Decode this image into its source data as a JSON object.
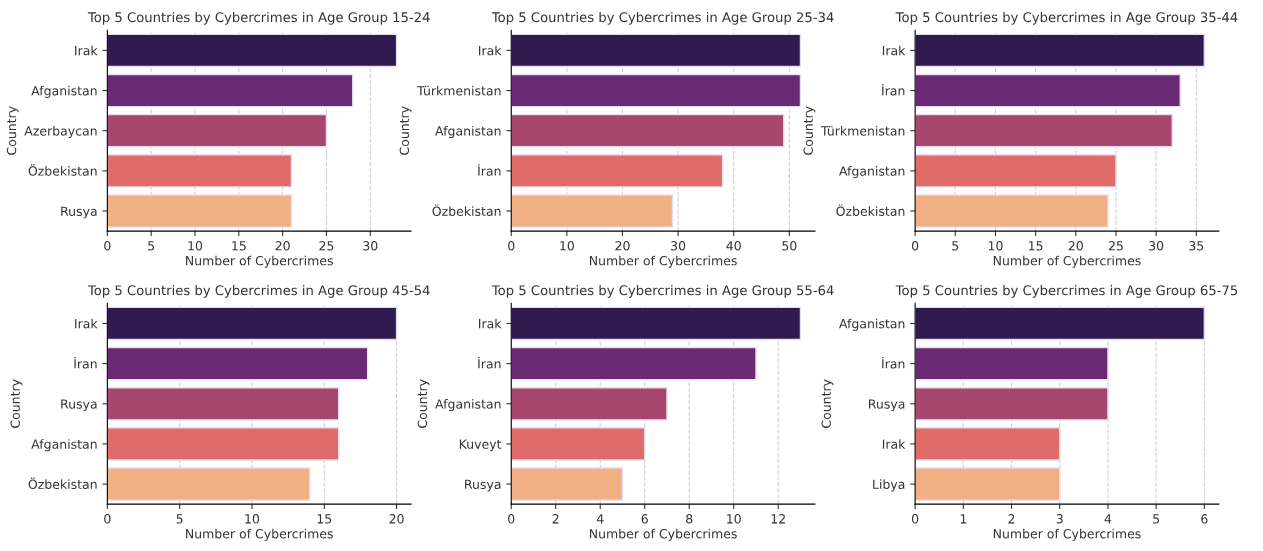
{
  "chart_data": [
    {
      "type": "bar",
      "orientation": "horizontal",
      "title": "Top 5 Countries by Cybercrimes in Age Group 15-24",
      "xlabel": "Number of Cybercrimes",
      "ylabel": "Country",
      "categories": [
        "Irak",
        "Afganistan",
        "Azerbaycan",
        "Özbekistan",
        "Rusya"
      ],
      "values": [
        33,
        28,
        25,
        21,
        21
      ],
      "colors": [
        "#2e1a4f",
        "#6a2a73",
        "#a7476f",
        "#e06c6a",
        "#f0b083"
      ],
      "xlim": [
        0,
        34.65
      ],
      "xticks": [
        0,
        5,
        10,
        15,
        20,
        25,
        30
      ],
      "grid": "x"
    },
    {
      "type": "bar",
      "orientation": "horizontal",
      "title": "Top 5 Countries by Cybercrimes in Age Group 25-34",
      "xlabel": "Number of Cybercrimes",
      "ylabel": "Country",
      "categories": [
        "Irak",
        "Türkmenistan",
        "Afganistan",
        "İran",
        "Özbekistan"
      ],
      "values": [
        52,
        52,
        49,
        38,
        29
      ],
      "colors": [
        "#2e1a4f",
        "#6a2a73",
        "#a7476f",
        "#e06c6a",
        "#f0b083"
      ],
      "xlim": [
        0,
        54.6
      ],
      "xticks": [
        0,
        10,
        20,
        30,
        40,
        50
      ],
      "grid": "x"
    },
    {
      "type": "bar",
      "orientation": "horizontal",
      "title": "Top 5 Countries by Cybercrimes in Age Group 35-44",
      "xlabel": "Number of Cybercrimes",
      "ylabel": "Country",
      "categories": [
        "Irak",
        "İran",
        "Türkmenistan",
        "Afganistan",
        "Özbekistan"
      ],
      "values": [
        36,
        33,
        32,
        25,
        24
      ],
      "colors": [
        "#2e1a4f",
        "#6a2a73",
        "#a7476f",
        "#e06c6a",
        "#f0b083"
      ],
      "xlim": [
        0,
        37.8
      ],
      "xticks": [
        0,
        5,
        10,
        15,
        20,
        25,
        30,
        35
      ],
      "grid": "x"
    },
    {
      "type": "bar",
      "orientation": "horizontal",
      "title": "Top 5 Countries by Cybercrimes in Age Group 45-54",
      "xlabel": "Number of Cybercrimes",
      "ylabel": "Country",
      "categories": [
        "Irak",
        "İran",
        "Rusya",
        "Afganistan",
        "Özbekistan"
      ],
      "values": [
        20,
        18,
        16,
        16,
        14
      ],
      "colors": [
        "#2e1a4f",
        "#6a2a73",
        "#a7476f",
        "#e06c6a",
        "#f0b083"
      ],
      "xlim": [
        0,
        21
      ],
      "xticks": [
        0,
        5,
        10,
        15,
        20
      ],
      "grid": "x"
    },
    {
      "type": "bar",
      "orientation": "horizontal",
      "title": "Top 5 Countries by Cybercrimes in Age Group 55-64",
      "xlabel": "Number of Cybercrimes",
      "ylabel": "Country",
      "categories": [
        "Irak",
        "İran",
        "Afganistan",
        "Kuveyt",
        "Rusya"
      ],
      "values": [
        13,
        11,
        7,
        6,
        5
      ],
      "colors": [
        "#2e1a4f",
        "#6a2a73",
        "#a7476f",
        "#e06c6a",
        "#f0b083"
      ],
      "xlim": [
        0,
        13.65
      ],
      "xticks": [
        0,
        2,
        4,
        6,
        8,
        10,
        12
      ],
      "grid": "x"
    },
    {
      "type": "bar",
      "orientation": "horizontal",
      "title": "Top 5 Countries by Cybercrimes in Age Group 65-75",
      "xlabel": "Number of Cybercrimes",
      "ylabel": "Country",
      "categories": [
        "Afganistan",
        "İran",
        "Rusya",
        "Irak",
        "Libya"
      ],
      "values": [
        6,
        4,
        4,
        3,
        3
      ],
      "colors": [
        "#2e1a4f",
        "#6a2a73",
        "#a7476f",
        "#e06c6a",
        "#f0b083"
      ],
      "xlim": [
        0,
        6.3
      ],
      "xticks": [
        0,
        1,
        2,
        3,
        4,
        5,
        6
      ],
      "grid": "x"
    }
  ]
}
